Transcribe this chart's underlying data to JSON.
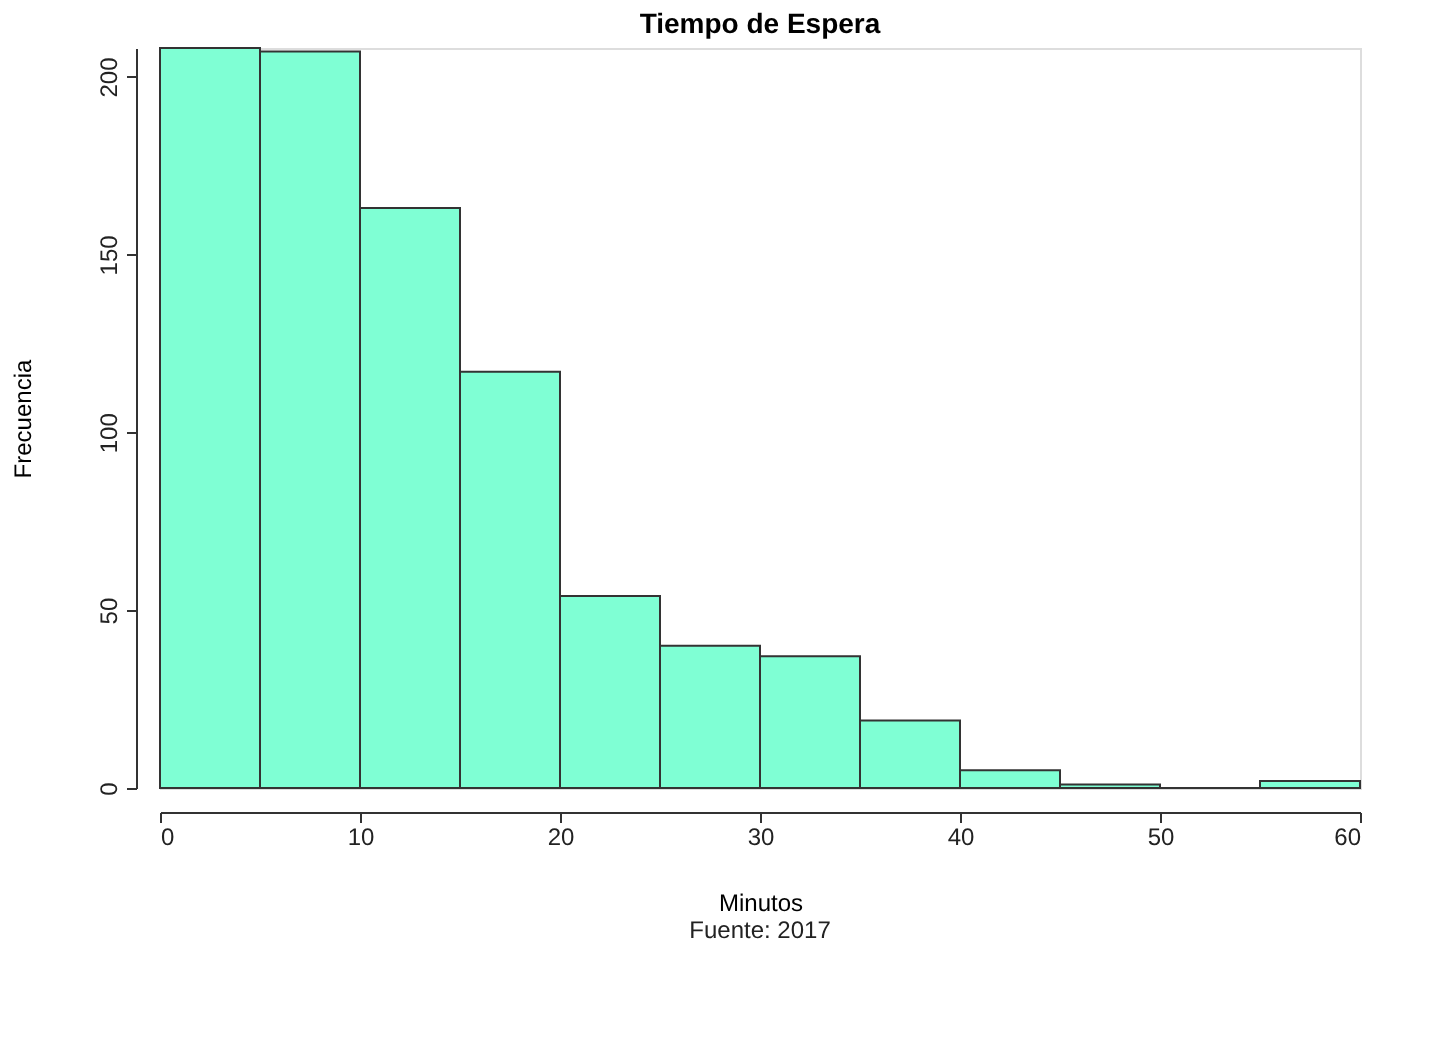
{
  "chart_data": {
    "type": "histogram",
    "title": "Tiempo de Espera",
    "xlabel": "Minutos",
    "ylabel": "Frecuencia",
    "annotations": [
      "Fuente: 2017"
    ],
    "bins": [
      0,
      5,
      10,
      15,
      20,
      25,
      30,
      35,
      40,
      45,
      50,
      55,
      60
    ],
    "values": [
      208,
      207,
      163,
      117,
      54,
      40,
      37,
      19,
      5,
      1,
      0,
      2
    ],
    "color": "#7fffd4",
    "xlim": [
      0,
      60
    ],
    "xticks": [
      0,
      10,
      20,
      30,
      40,
      50,
      60
    ],
    "ylim": [
      0,
      208
    ],
    "yticks": [
      0,
      50,
      100,
      150,
      200
    ],
    "grid": false
  }
}
